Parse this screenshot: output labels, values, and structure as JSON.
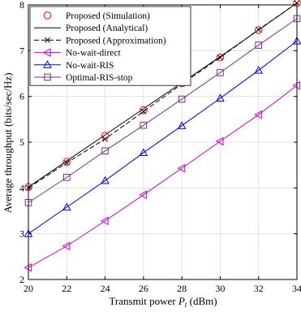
{
  "chart_data": {
    "type": "line",
    "title": "",
    "xlabel": "Transmit power P_t (dBm)",
    "xlabel_parts": {
      "prefix": "Transmit power ",
      "symbol": "P",
      "subscript": "t",
      "suffix": " (dBm)"
    },
    "ylabel": "Average throughput (bits/sec/Hz)",
    "xlim": [
      20,
      34
    ],
    "ylim": [
      2,
      8
    ],
    "xticks": [
      20,
      22,
      24,
      26,
      28,
      30,
      32,
      34
    ],
    "yticks": [
      2,
      3,
      4,
      5,
      6,
      7,
      8
    ],
    "grid": true,
    "legend_position": "top-left",
    "x": [
      20,
      22,
      24,
      26,
      28,
      30,
      32,
      34
    ],
    "series": [
      {
        "name": "Proposed (Simulation)",
        "color": "#ff0000",
        "marker": "circle",
        "line": "none",
        "values": [
          4.02,
          4.57,
          5.14,
          5.7,
          6.29,
          6.85,
          7.45,
          8.04
        ]
      },
      {
        "name": "Proposed (Analytical)",
        "color": "#000000",
        "marker": "none",
        "line": "solid",
        "values": [
          4.02,
          4.59,
          5.16,
          5.73,
          6.3,
          6.87,
          7.45,
          8.04
        ]
      },
      {
        "name": "Proposed (Approximation)",
        "color": "#000000",
        "marker": "x",
        "line": "dashed",
        "values": [
          4.0,
          4.55,
          5.07,
          5.67,
          6.27,
          6.85,
          7.46,
          8.04
        ]
      },
      {
        "name": "No-wait-direct",
        "color": "#cc00cc",
        "marker": "triangle-left",
        "line": "solid",
        "values": [
          2.26,
          2.73,
          3.28,
          3.85,
          4.43,
          5.02,
          5.6,
          6.24
        ]
      },
      {
        "name": "No-wait-RIS",
        "color": "#0000ff",
        "marker": "triangle-up",
        "line": "solid",
        "values": [
          3.0,
          3.58,
          4.16,
          4.77,
          5.36,
          5.96,
          6.57,
          7.21
        ]
      },
      {
        "name": "Optimal-RIS-stop",
        "color": "#7e2f8e",
        "marker": "square",
        "line": "solid",
        "values": [
          3.68,
          4.23,
          4.81,
          5.37,
          5.94,
          6.52,
          7.12,
          7.7
        ]
      }
    ]
  }
}
